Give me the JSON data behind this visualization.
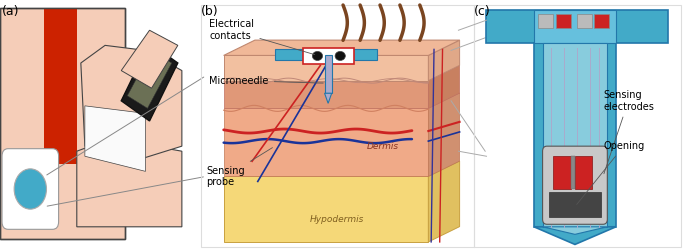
{
  "panel_labels": [
    "(a)",
    "(b)",
    "(c)"
  ],
  "bg_color": "#ffffff",
  "skin_light": "#f5cdb8",
  "skin_mid": "#e8a888",
  "skin_dark": "#d4866a",
  "arm_red": "#cc2200",
  "device_black": "#1a1a1a",
  "device_screen": "#6b7055",
  "cyan_color": "#42aac8",
  "cyan_dark": "#2277aa",
  "blue_color": "#1a3399",
  "red_color": "#cc2222",
  "hair_color": "#7a4520",
  "hypo_color": "#f5d878",
  "hypo_outline": "#c8a040",
  "dermis_color": "#f0aa88",
  "epi_color": "#e89070",
  "top_skin_color": "#f2c0a0",
  "wavy_color": "#d08060",
  "right_face_color": "#d89070",
  "top_face_color": "#f0b898",
  "label_fontsize": 7.0,
  "panel_label_fontsize": 9.0
}
